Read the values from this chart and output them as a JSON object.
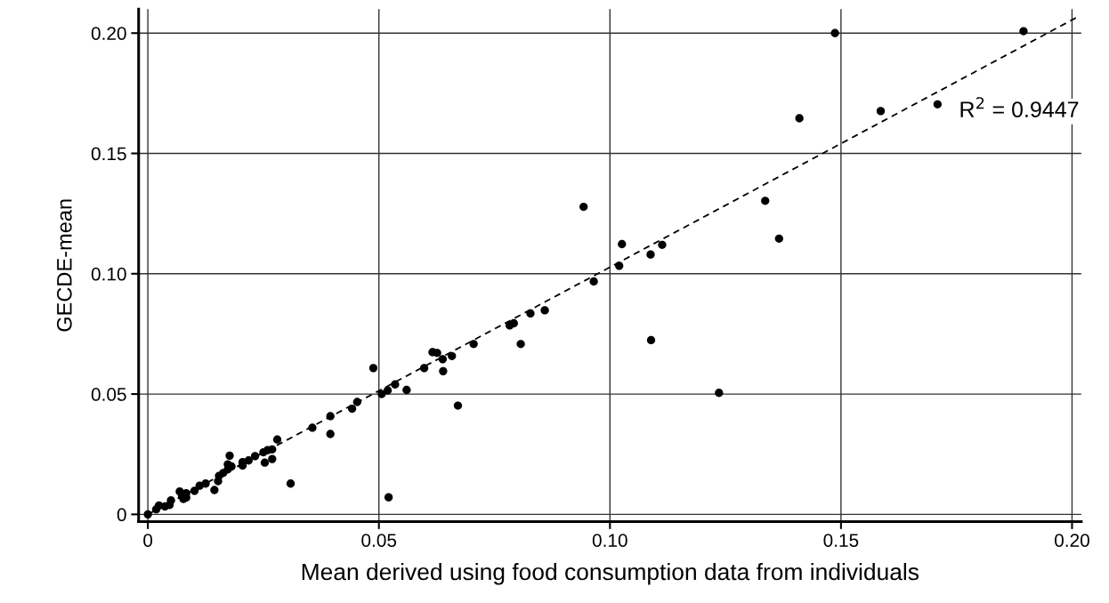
{
  "chart_data": {
    "type": "scatter",
    "xlabel": "Mean derived using food consumption data from individuals",
    "ylabel": "GECDE-mean",
    "xlim": [
      -0.002,
      0.202
    ],
    "ylim": [
      -0.003,
      0.21
    ],
    "xticks": [
      {
        "value": 0,
        "label": "0"
      },
      {
        "value": 0.05,
        "label": "0.05"
      },
      {
        "value": 0.1,
        "label": "0.10"
      },
      {
        "value": 0.15,
        "label": "0.15"
      },
      {
        "value": 0.2,
        "label": "0.20"
      }
    ],
    "yticks": [
      {
        "value": 0,
        "label": "0"
      },
      {
        "value": 0.05,
        "label": "0.05"
      },
      {
        "value": 0.1,
        "label": "0.10"
      },
      {
        "value": 0.15,
        "label": "0.15"
      },
      {
        "value": 0.2,
        "label": "0.20"
      }
    ],
    "grid": true,
    "marker": "circle",
    "annotations": [
      "R$^{2}$ = 0.9447"
    ],
    "series": [
      {
        "color": "#000000",
        "x": [
          0,
          0.0018,
          0.0024,
          0.0037,
          0.0047,
          0.005,
          0.0069,
          0.0074,
          0.0077,
          0.0083,
          0.0083,
          0.0101,
          0.0112,
          0.0125,
          0.0144,
          0.0152,
          0.0154,
          0.0163,
          0.0173,
          0.0177,
          0.0173,
          0.0181,
          0.0205,
          0.0205,
          0.0218,
          0.0232,
          0.025,
          0.0253,
          0.0259,
          0.0269,
          0.0269,
          0.028,
          0.0309,
          0.0356,
          0.0395,
          0.0395,
          0.0442,
          0.0453,
          0.0488,
          0.0506,
          0.0519,
          0.0535,
          0.056,
          0.0521,
          0.0598,
          0.0616,
          0.0626,
          0.0638,
          0.0639,
          0.0658,
          0.0671,
          0.0705,
          0.0783,
          0.0792,
          0.0807,
          0.0828,
          0.0859,
          0.0943,
          0.0965,
          0.102,
          0.1026,
          0.1088,
          0.1113,
          0.1089,
          0.1236,
          0.1336,
          0.1366,
          0.141,
          0.1487,
          0.1586,
          0.1709,
          0.1895
        ],
        "values": [
          0,
          0.0021,
          0.0037,
          0.0033,
          0.0039,
          0.0058,
          0.0095,
          0.0076,
          0.0064,
          0.007,
          0.0088,
          0.0098,
          0.0119,
          0.0128,
          0.0101,
          0.0138,
          0.016,
          0.0172,
          0.0187,
          0.0244,
          0.0208,
          0.0199,
          0.0217,
          0.0203,
          0.0224,
          0.0242,
          0.0258,
          0.0215,
          0.0267,
          0.023,
          0.027,
          0.0311,
          0.0128,
          0.036,
          0.0408,
          0.0334,
          0.0439,
          0.0467,
          0.0608,
          0.05,
          0.0515,
          0.054,
          0.0517,
          0.0071,
          0.0608,
          0.0674,
          0.0671,
          0.0645,
          0.0595,
          0.0658,
          0.0452,
          0.0708,
          0.0785,
          0.0794,
          0.0708,
          0.0835,
          0.0848,
          0.1278,
          0.0968,
          0.1033,
          0.1123,
          0.108,
          0.112,
          0.0724,
          0.0505,
          0.1303,
          0.1146,
          0.1646,
          0.2,
          0.1676,
          0.1704,
          0.2008
        ]
      },
      {
        "type": "line",
        "color": "#000000",
        "line_style": "dashed",
        "marker": "none",
        "x": [
          0,
          0.201
        ],
        "values": [
          0,
          0.2065
        ]
      }
    ]
  }
}
